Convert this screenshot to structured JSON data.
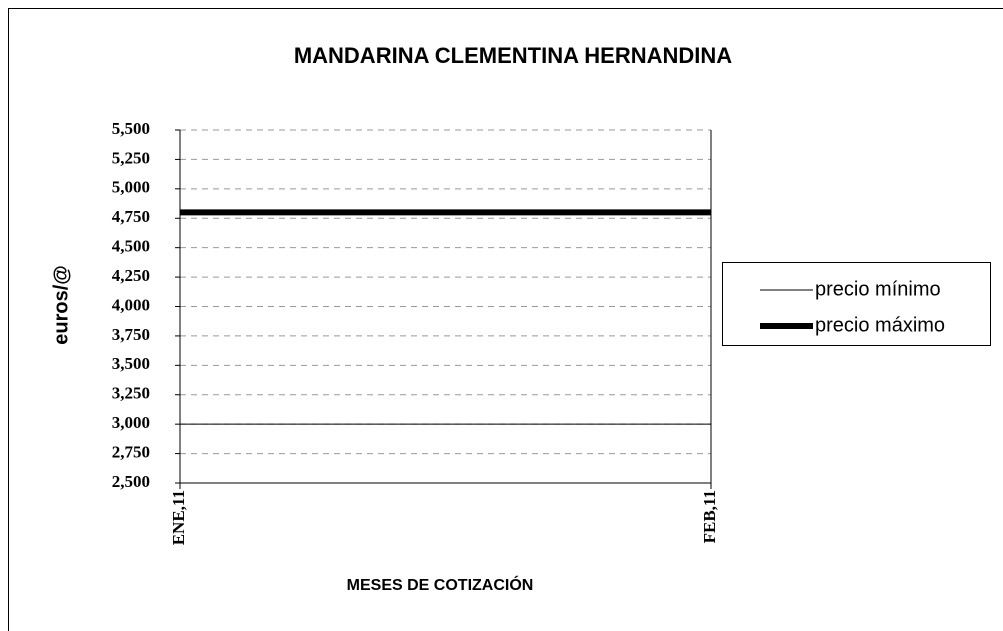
{
  "chart_data": {
    "type": "line",
    "title": "MANDARINA CLEMENTINA HERNANDINA",
    "xlabel": "MESES DE COTIZACIÓN",
    "ylabel": "euros/@",
    "categories": [
      "ENE,11",
      "FEB,11"
    ],
    "series": [
      {
        "name": "precio mínimo",
        "color": "#000000",
        "width": 1,
        "values": [
          3,
          3
        ]
      },
      {
        "name": "precio máximo",
        "color": "#000000",
        "width": 6,
        "values": [
          4.8,
          4.8
        ]
      }
    ],
    "ylim": [
      2.5,
      5.5
    ],
    "yticks": [
      {
        "value": 2.5,
        "label": "2,500"
      },
      {
        "value": 2.75,
        "label": "2,750"
      },
      {
        "value": 3,
        "label": "3,000"
      },
      {
        "value": 3.25,
        "label": "3,250"
      },
      {
        "value": 3.5,
        "label": "3,500"
      },
      {
        "value": 3.75,
        "label": "3,750"
      },
      {
        "value": 4,
        "label": "4,000"
      },
      {
        "value": 4.25,
        "label": "4,250"
      },
      {
        "value": 4.5,
        "label": "4,500"
      },
      {
        "value": 4.75,
        "label": "4,750"
      },
      {
        "value": 5,
        "label": "5,000"
      },
      {
        "value": 5.25,
        "label": "5,250"
      },
      {
        "value": 5.5,
        "label": "5,500"
      }
    ],
    "grid": true,
    "legend": "right"
  }
}
